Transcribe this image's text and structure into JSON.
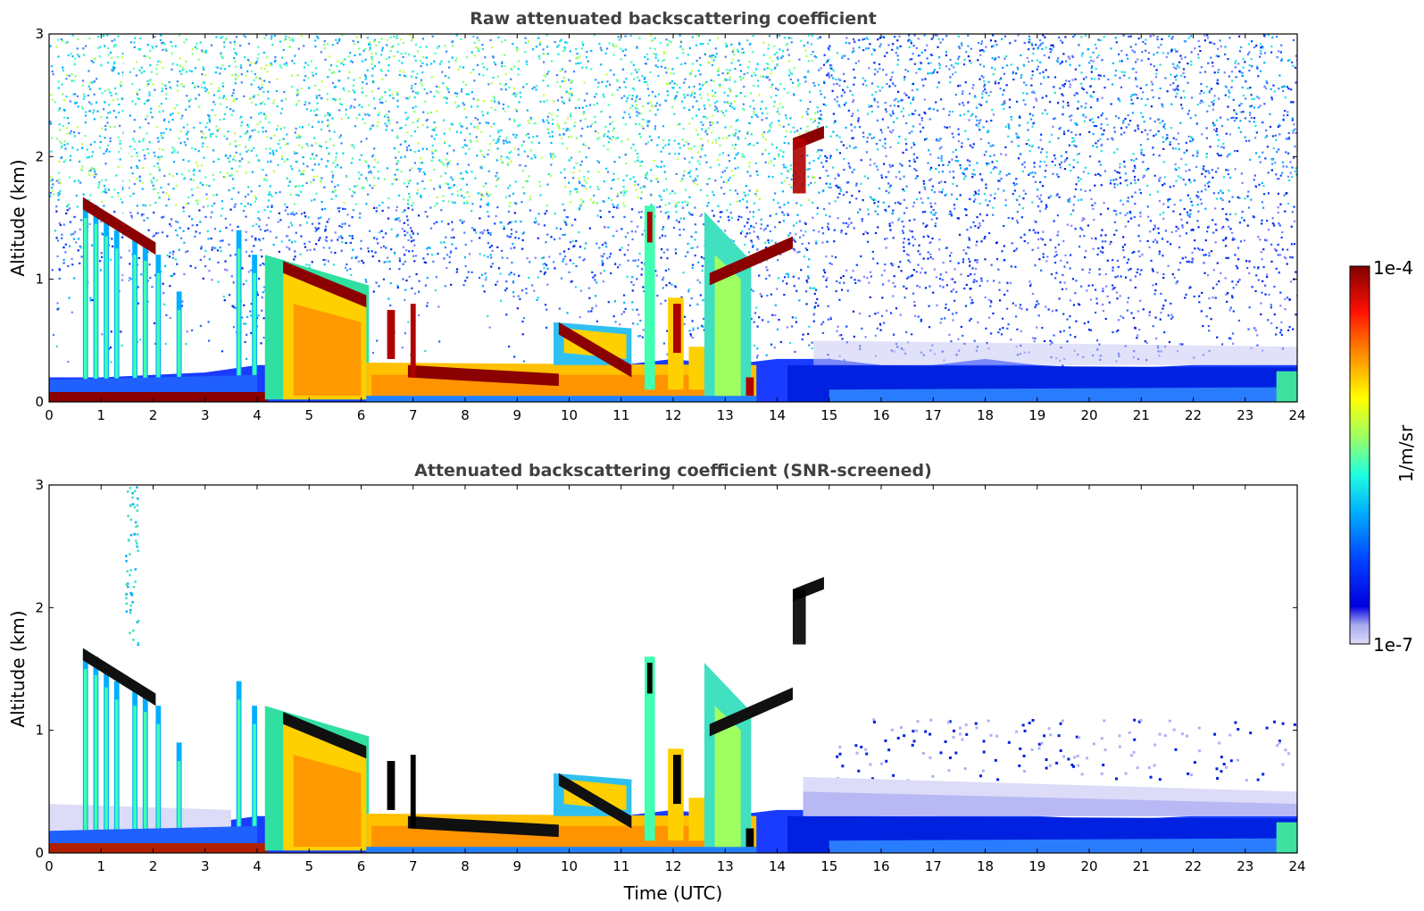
{
  "chart_data": [
    {
      "type": "heatmap",
      "title": "Raw attenuated backscattering coefficient",
      "xlabel": "",
      "ylabel": "Altitude (km)",
      "xlim": [
        0,
        24
      ],
      "ylim": [
        0,
        3
      ],
      "xticks": [
        "0",
        "1",
        "2",
        "3",
        "4",
        "5",
        "6",
        "7",
        "8",
        "9",
        "10",
        "11",
        "12",
        "13",
        "14",
        "15",
        "16",
        "17",
        "18",
        "19",
        "20",
        "21",
        "22",
        "23",
        "24"
      ],
      "yticks": [
        "0",
        "1",
        "2",
        "3"
      ],
      "features": {
        "boundary_layer_top_km": [
          [
            0,
            0.2
          ],
          [
            1,
            0.2
          ],
          [
            2,
            0.22
          ],
          [
            3,
            0.24
          ],
          [
            4,
            0.3
          ],
          [
            6,
            0.3
          ],
          [
            7,
            0.25
          ],
          [
            8,
            0.28
          ],
          [
            9,
            0.28
          ],
          [
            10,
            0.28
          ],
          [
            11,
            0.3
          ],
          [
            12,
            0.35
          ],
          [
            13,
            0.3
          ],
          [
            14,
            0.35
          ],
          [
            15,
            0.35
          ],
          [
            16,
            0.3
          ],
          [
            17,
            0.3
          ],
          [
            18,
            0.35
          ],
          [
            19,
            0.3
          ],
          [
            20,
            0.28
          ],
          [
            21,
            0.28
          ],
          [
            22,
            0.3
          ],
          [
            23,
            0.3
          ],
          [
            24,
            0.3
          ]
        ],
        "cloud_layers": [
          {
            "x": [
              0.65,
              2.05
            ],
            "alt_km": [
              1.62,
              1.25
            ]
          },
          {
            "x": [
              4.5,
              6.1
            ],
            "alt_km": [
              1.1,
              0.82
            ]
          },
          {
            "x": [
              6.9,
              9.8
            ],
            "alt_km": [
              0.25,
              0.18
            ]
          },
          {
            "x": [
              9.8,
              11.2
            ],
            "alt_km": [
              0.6,
              0.25
            ]
          },
          {
            "x": [
              12.7,
              14.3
            ],
            "alt_km": [
              1.0,
              1.3
            ]
          },
          {
            "x": [
              14.3,
              14.9
            ],
            "alt_km": [
              2.1,
              2.2
            ]
          }
        ]
      }
    },
    {
      "type": "heatmap",
      "title": "Attenuated backscattering coefficient (SNR-screened)",
      "xlabel": "Time (UTC)",
      "ylabel": "Altitude (km)",
      "xlim": [
        0,
        24
      ],
      "ylim": [
        0,
        3
      ],
      "xticks": [
        "0",
        "1",
        "2",
        "3",
        "4",
        "5",
        "6",
        "7",
        "8",
        "9",
        "10",
        "11",
        "12",
        "13",
        "14",
        "15",
        "16",
        "17",
        "18",
        "19",
        "20",
        "21",
        "22",
        "23",
        "24"
      ],
      "yticks": [
        "0",
        "1",
        "2",
        "3"
      ]
    }
  ],
  "colorbar": {
    "label": "1/m/sr",
    "max_label": "1e-4",
    "min_label": "1e-7",
    "scale": "log",
    "colormap": "jet",
    "min_color": "#dcdcf8",
    "max_color": "#800000"
  }
}
